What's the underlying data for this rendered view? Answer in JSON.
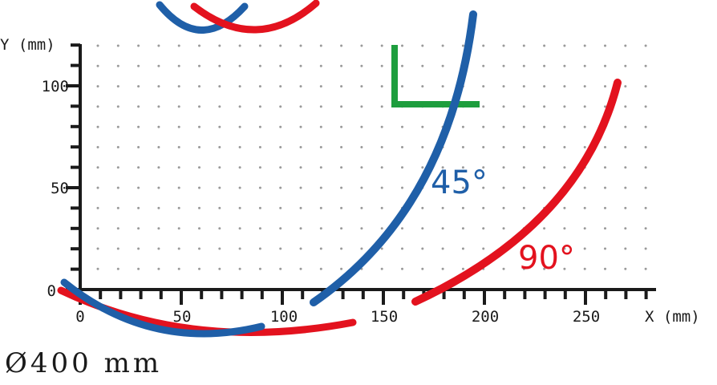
{
  "diagram": {
    "x_axis": {
      "label": "X (mm)",
      "ticks": [
        "0",
        "50",
        "100",
        "150",
        "200",
        "250"
      ]
    },
    "y_axis": {
      "label": "Y (mm)",
      "ticks": [
        "0",
        "50",
        "100"
      ]
    },
    "curves": [
      {
        "name": "45°",
        "color": "#1f5fa8",
        "label": "45°"
      },
      {
        "name": "90°",
        "color": "#e3121e",
        "label": "90°"
      }
    ],
    "marker_color": "#1e9e3e",
    "diameter_label": "Ø400 mm",
    "grid": "dotted"
  }
}
